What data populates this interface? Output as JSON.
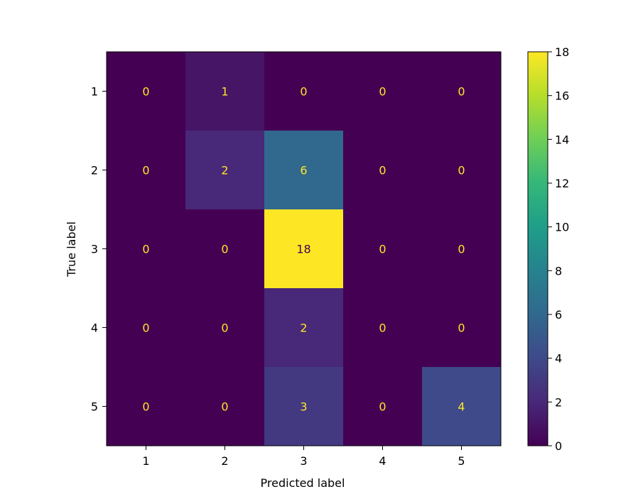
{
  "chart_data": {
    "type": "heatmap",
    "title": "",
    "xlabel": "Predicted label",
    "ylabel": "True label",
    "x_categories": [
      "1",
      "2",
      "3",
      "4",
      "5"
    ],
    "y_categories": [
      "1",
      "2",
      "3",
      "4",
      "5"
    ],
    "matrix": [
      [
        0,
        1,
        0,
        0,
        0
      ],
      [
        0,
        2,
        6,
        0,
        0
      ],
      [
        0,
        0,
        18,
        0,
        0
      ],
      [
        0,
        0,
        2,
        0,
        0
      ],
      [
        0,
        0,
        3,
        0,
        4
      ]
    ],
    "colormap": "viridis",
    "colorbar": {
      "range": [
        0,
        18
      ],
      "ticks": [
        "0",
        "2",
        "4",
        "6",
        "8",
        "10",
        "12",
        "14",
        "16",
        "18"
      ]
    },
    "text_color_low": "#fde725",
    "text_color_high": "#440154"
  }
}
